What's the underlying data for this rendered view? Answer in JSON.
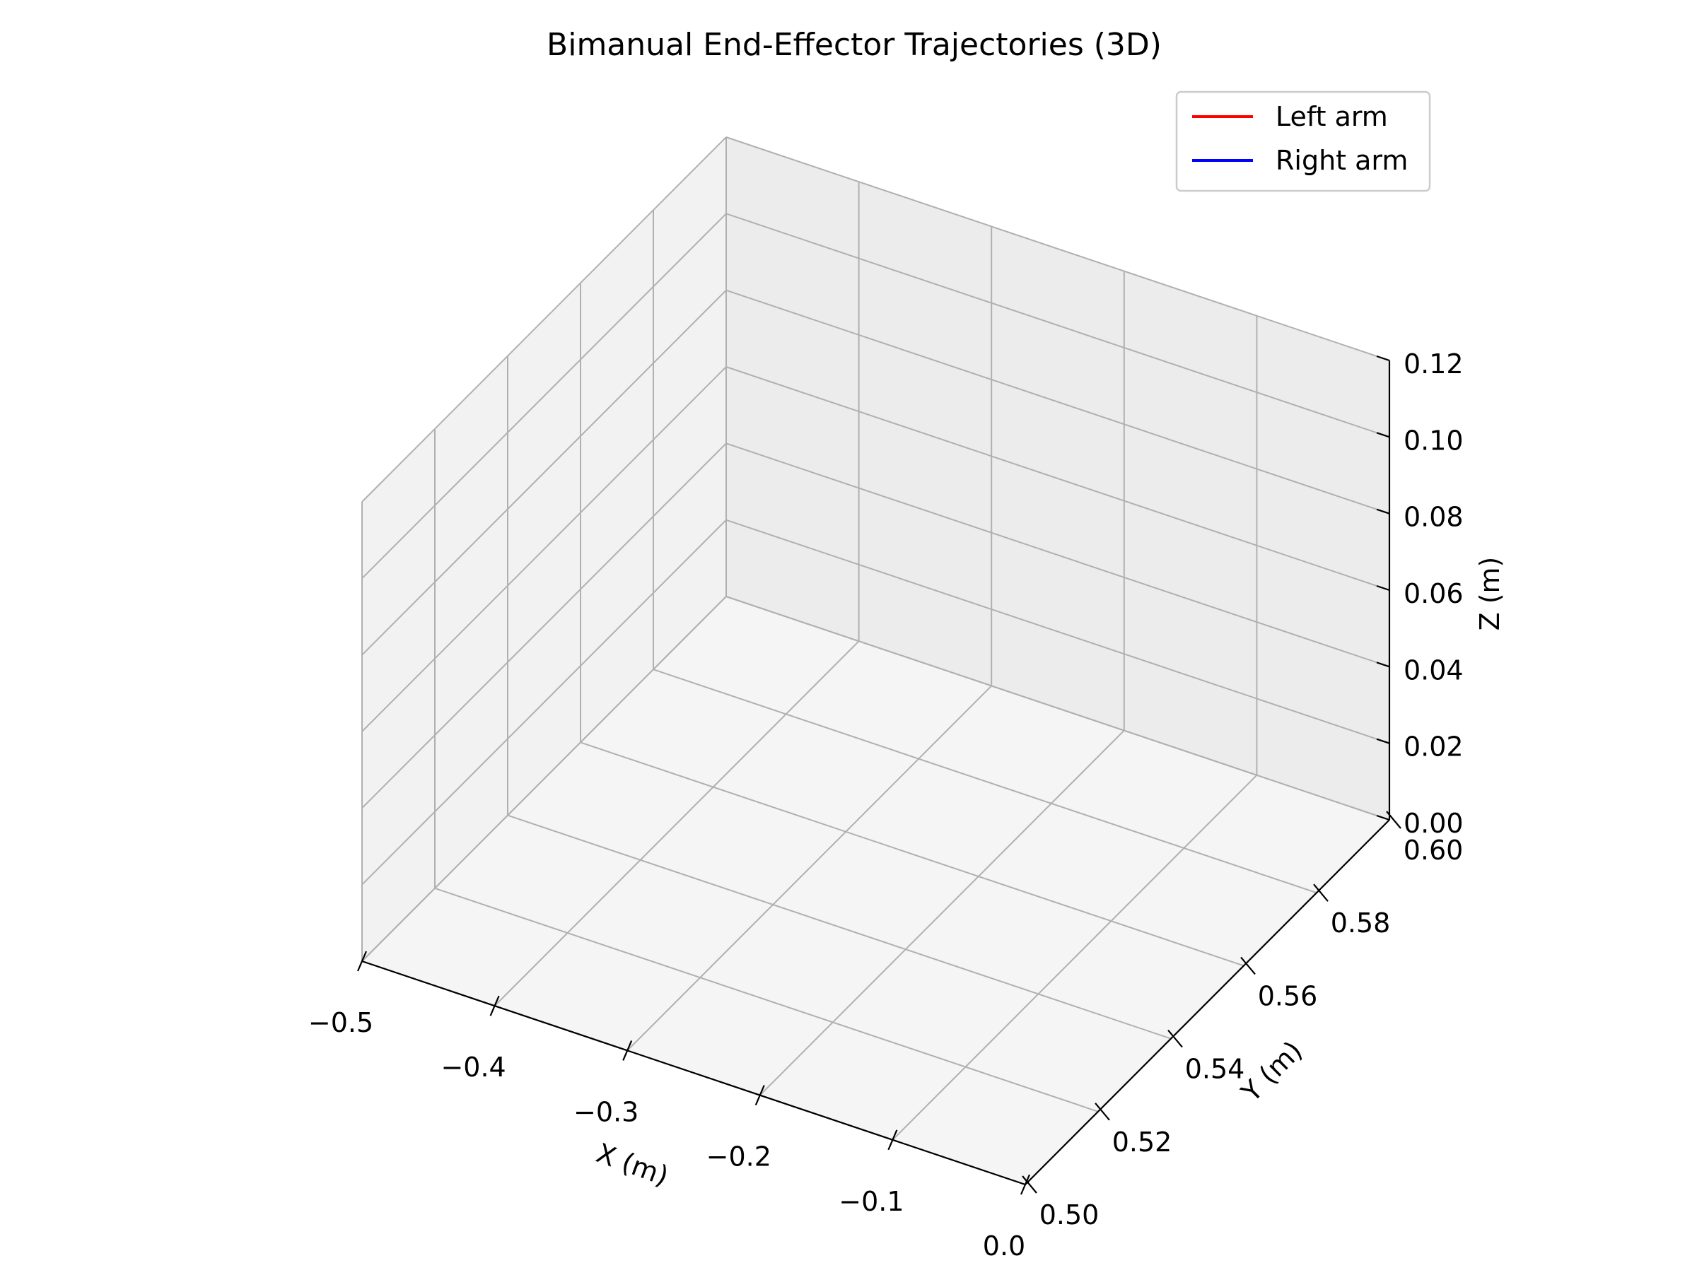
{
  "chart_data": {
    "type": "line",
    "projection": "3d",
    "title": "Bimanual End-Effector Trajectories (3D)",
    "xlabel": "X (m)",
    "ylabel": "Y (m)",
    "zlabel": "Z (m)",
    "xlim": [
      -0.5,
      0.0
    ],
    "ylim": [
      0.5,
      0.6
    ],
    "zlim": [
      0.0,
      0.12
    ],
    "x_ticks": [
      -0.5,
      -0.4,
      -0.3,
      -0.2,
      -0.1,
      0.0
    ],
    "y_ticks": [
      0.5,
      0.52,
      0.54,
      0.56,
      0.58,
      0.6
    ],
    "z_ticks": [
      0.0,
      0.02,
      0.04,
      0.06,
      0.08,
      0.1,
      0.12
    ],
    "x_tick_labels": [
      "−0.5",
      "−0.4",
      "−0.3",
      "−0.2",
      "−0.1",
      "0.0"
    ],
    "y_tick_labels": [
      "0.50",
      "0.52",
      "0.54",
      "0.56",
      "0.58",
      "0.60"
    ],
    "z_tick_labels": [
      "0.00",
      "0.02",
      "0.04",
      "0.06",
      "0.08",
      "0.10",
      "0.12"
    ],
    "grid": true,
    "legend_position": "top-right",
    "series": [
      {
        "name": "Left arm",
        "color": "#ff0000",
        "points": []
      },
      {
        "name": "Right arm",
        "color": "#0000ff",
        "points": []
      }
    ]
  }
}
